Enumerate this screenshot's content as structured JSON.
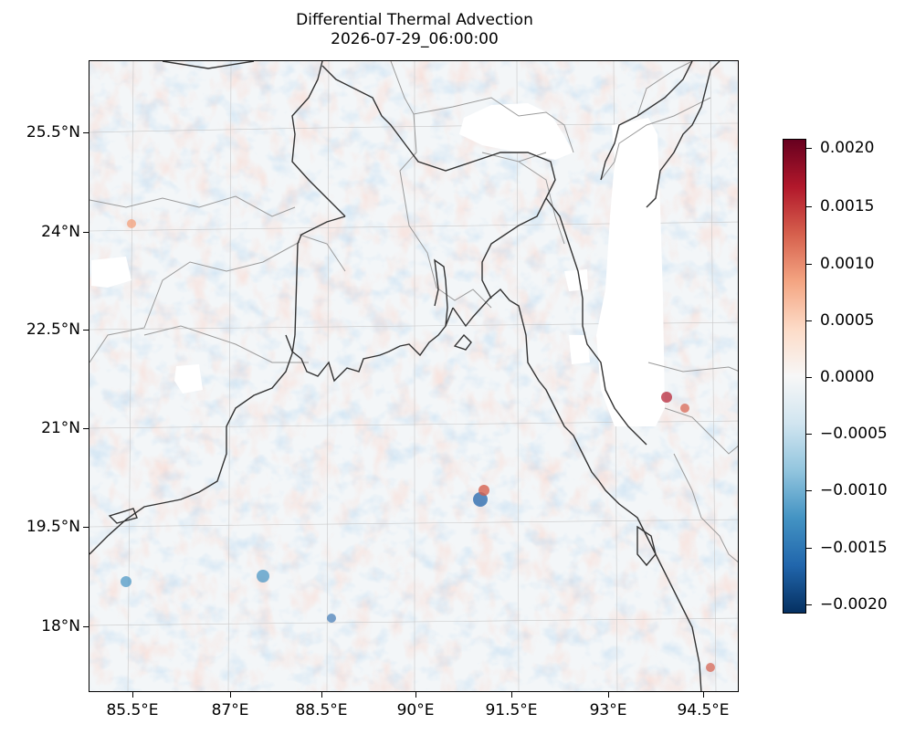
{
  "title": {
    "line1": "Differential Thermal Advection",
    "line2": "2026-07-29_06:00:00"
  },
  "map": {
    "lat_labels": [
      "25.5°N",
      "24°N",
      "22.5°N",
      "21°N",
      "19.5°N",
      "18°N"
    ],
    "lon_labels": [
      "85.5°E",
      "87°E",
      "88.5°E",
      "90°E",
      "91.5°E",
      "93°E",
      "94.5°E"
    ],
    "lat_range": [
      17.0,
      26.5
    ],
    "lon_range": [
      84.5,
      94.8
    ],
    "field": "differential thermal advection",
    "colormap": "RdBu_r",
    "coastline_color": "#333333",
    "border_color": "#999999",
    "masked_color": "#ffffff"
  },
  "colorbar": {
    "labels": [
      "0.0020",
      "0.0015",
      "0.0010",
      "0.0005",
      "0.0000",
      "−0.0005",
      "−0.0010",
      "−0.0015",
      "−0.0020"
    ],
    "range": [
      -0.0021,
      0.0021
    ],
    "colors": [
      "#053061",
      "#2166ac",
      "#4393c3",
      "#92c5de",
      "#d1e5f0",
      "#f7f7f7",
      "#fddbc7",
      "#f4a582",
      "#d6604d",
      "#b2182b",
      "#67001f"
    ]
  }
}
